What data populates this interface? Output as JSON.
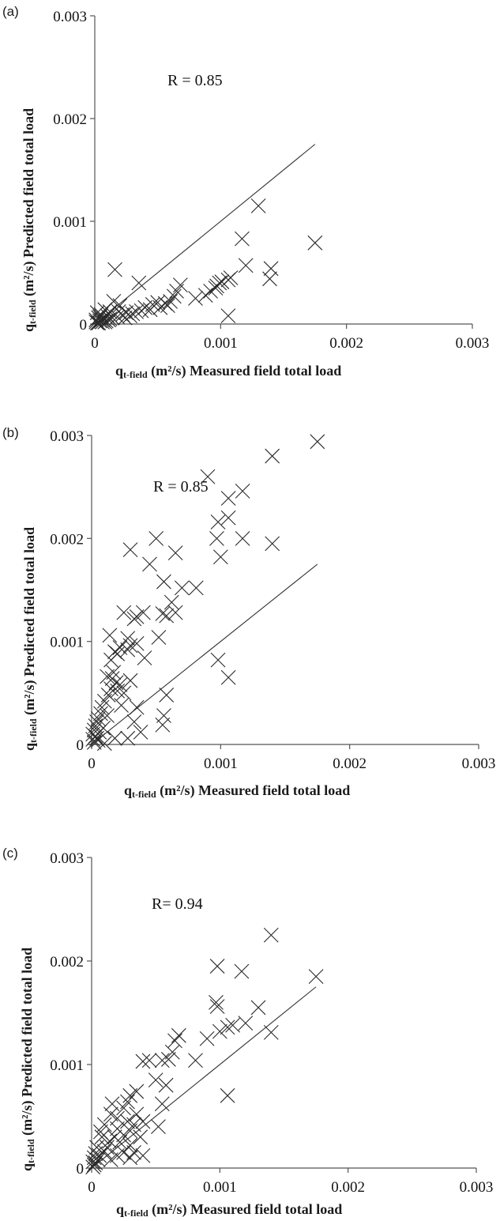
{
  "chart_data": [
    {
      "type": "scatter",
      "panel_label": "(a)",
      "annotation": "R = 0.85",
      "xlabel": {
        "prefix": "q",
        "sub": "t-field",
        "rest": " (m²/s) Measured field total load"
      },
      "ylabel": {
        "prefix": "q",
        "sub": "t-field",
        "rest": " (m²/s) Predicted field total load"
      },
      "xlim": [
        0,
        0.003
      ],
      "ylim": [
        0,
        0.003
      ],
      "x_ticks": [
        0,
        0.001,
        0.002,
        0.003
      ],
      "x_tick_labels": [
        "0",
        "0.001",
        "0.002",
        "0.003"
      ],
      "y_ticks": [
        0,
        0.001,
        0.002,
        0.003
      ],
      "y_tick_labels": [
        "0",
        "0.001",
        "0.002",
        "0.003"
      ],
      "reference_line": {
        "x": [
          0,
          0.00175
        ],
        "y": [
          0,
          0.00175
        ]
      },
      "points": [
        [
          0.0013,
          0.00115
        ],
        [
          0.00117,
          0.00083
        ],
        [
          0.00175,
          0.00079
        ],
        [
          0.0014,
          0.00054
        ],
        [
          0.00139,
          0.00044
        ],
        [
          0.0012,
          0.00057
        ],
        [
          0.00108,
          0.00045
        ],
        [
          0.00106,
          0.00043
        ],
        [
          0.00101,
          0.00041
        ],
        [
          0.00099,
          0.0004
        ],
        [
          0.00097,
          0.00037
        ],
        [
          0.00096,
          0.00035
        ],
        [
          0.00106,
          8e-05
        ],
        [
          0.00092,
          0.00032
        ],
        [
          0.00088,
          0.00028
        ],
        [
          0.0008,
          0.00025
        ],
        [
          0.00068,
          0.00038
        ],
        [
          0.00065,
          0.00032
        ],
        [
          0.00063,
          0.00027
        ],
        [
          0.0006,
          0.00022
        ],
        [
          0.00058,
          0.00018
        ],
        [
          0.00056,
          0.0002
        ],
        [
          0.00052,
          0.00016
        ],
        [
          0.0005,
          0.00021
        ],
        [
          0.00046,
          0.00019
        ],
        [
          0.00044,
          0.00014
        ],
        [
          0.0004,
          0.00016
        ],
        [
          0.00037,
          0.00013
        ],
        [
          0.00035,
          0.0004
        ],
        [
          0.00033,
          0.00012
        ],
        [
          0.0003,
          0.0001
        ],
        [
          0.00028,
          8e-05
        ],
        [
          0.00025,
          0.00011
        ],
        [
          0.00022,
          9e-05
        ],
        [
          0.0002,
          0.00018
        ],
        [
          0.00018,
          7e-05
        ],
        [
          0.00016,
          0.00053
        ],
        [
          0.00015,
          0.00022
        ],
        [
          0.00014,
          6e-05
        ],
        [
          0.00012,
          0.00012
        ],
        [
          0.00011,
          4e-05
        ],
        [
          0.0001,
          8e-05
        ],
        [
          9e-05,
          3e-05
        ],
        [
          8e-05,
          0.00014
        ],
        [
          7e-05,
          5e-05
        ],
        [
          6e-05,
          2e-05
        ],
        [
          5e-05,
          9e-05
        ],
        [
          4e-05,
          3e-05
        ],
        [
          3e-05,
          6e-05
        ],
        [
          2e-05,
          1e-05
        ],
        [
          2e-05,
          0.00011
        ],
        [
          1e-05,
          2e-05
        ],
        [
          1e-05,
          4e-05
        ],
        [
          3e-05,
          1e-05
        ],
        [
          4e-05,
          7e-05
        ],
        [
          6e-05,
          4e-05
        ],
        [
          8e-05,
          2e-05
        ],
        [
          0.00012,
          5e-05
        ],
        [
          0.00019,
          0.00012
        ],
        [
          0.00024,
          6e-05
        ]
      ]
    },
    {
      "type": "scatter",
      "panel_label": "(b)",
      "annotation": "R = 0.85",
      "xlabel": {
        "prefix": "q",
        "sub": "t-field",
        "rest": " (m²/s) Measured field total load"
      },
      "ylabel": {
        "prefix": "q",
        "sub": "t-field",
        "rest": " (m²/s) Predicted field total load"
      },
      "xlim": [
        0,
        0.003
      ],
      "ylim": [
        0,
        0.003
      ],
      "x_ticks": [
        0,
        0.001,
        0.002,
        0.003
      ],
      "x_tick_labels": [
        "0",
        "0.001",
        "0.002",
        "0.003"
      ],
      "y_ticks": [
        0,
        0.001,
        0.002,
        0.003
      ],
      "y_tick_labels": [
        "0",
        "0.001",
        "0.002",
        "0.003"
      ],
      "reference_line": {
        "x": [
          0,
          0.00175
        ],
        "y": [
          0,
          0.00175
        ]
      },
      "points": [
        [
          0.00175,
          0.00294
        ],
        [
          0.0014,
          0.0028
        ],
        [
          0.0009,
          0.0026
        ],
        [
          0.00117,
          0.00246
        ],
        [
          0.00106,
          0.00239
        ],
        [
          0.00098,
          0.00216
        ],
        [
          0.00106,
          0.0022
        ],
        [
          0.00117,
          0.002
        ],
        [
          0.00097,
          0.002
        ],
        [
          0.0014,
          0.00195
        ],
        [
          0.001,
          0.00182
        ],
        [
          0.0003,
          0.00189
        ],
        [
          0.0005,
          0.002
        ],
        [
          0.00045,
          0.00175
        ],
        [
          0.00065,
          0.00186
        ],
        [
          0.00056,
          0.00158
        ],
        [
          0.0007,
          0.00152
        ],
        [
          0.00081,
          0.00152
        ],
        [
          0.00062,
          0.00138
        ],
        [
          0.00055,
          0.00127
        ],
        [
          0.00058,
          0.00125
        ],
        [
          0.00065,
          0.00128
        ],
        [
          0.0004,
          0.00128
        ],
        [
          0.00035,
          0.00124
        ],
        [
          0.00033,
          0.00122
        ],
        [
          0.00025,
          0.00128
        ],
        [
          0.00052,
          0.00104
        ],
        [
          0.00041,
          0.00084
        ],
        [
          0.00035,
          0.00098
        ],
        [
          0.00028,
          0.00103
        ],
        [
          0.0003,
          0.00096
        ],
        [
          0.00028,
          0.00092
        ],
        [
          0.00022,
          0.00094
        ],
        [
          0.00018,
          0.0009
        ],
        [
          0.0002,
          0.00088
        ],
        [
          0.00015,
          0.00082
        ],
        [
          0.00014,
          0.00106
        ],
        [
          0.00017,
          0.0007
        ],
        [
          0.00012,
          0.00066
        ],
        [
          0.00016,
          0.00064
        ],
        [
          0.00019,
          0.0006
        ],
        [
          0.00022,
          0.00058
        ],
        [
          0.00015,
          0.00054
        ],
        [
          0.00013,
          0.00048
        ],
        [
          0.00025,
          0.0005
        ],
        [
          0.0003,
          0.00062
        ],
        [
          0.0002,
          0.00052
        ],
        [
          0.0001,
          0.00042
        ],
        [
          8e-05,
          0.00036
        ],
        [
          7e-05,
          0.0003
        ],
        [
          5e-05,
          0.00025
        ],
        [
          4e-05,
          0.00022
        ],
        [
          3e-05,
          0.00018
        ],
        [
          2e-05,
          0.00014
        ],
        [
          1e-05,
          0.0001
        ],
        [
          1e-05,
          5e-05
        ],
        [
          2e-05,
          2e-05
        ],
        [
          3e-05,
          8e-05
        ],
        [
          5e-05,
          4e-05
        ],
        [
          6e-05,
          0.00012
        ],
        [
          0.00035,
          0.00036
        ],
        [
          0.00033,
          0.00022
        ],
        [
          0.00038,
          0.00012
        ],
        [
          0.00028,
          6e-05
        ],
        [
          0.00058,
          0.00048
        ],
        [
          0.00056,
          0.00028
        ],
        [
          0.00055,
          0.00019
        ],
        [
          0.00098,
          0.00082
        ],
        [
          0.00106,
          0.00065
        ],
        [
          0.00023,
          0.00038
        ],
        [
          0.00012,
          0.00028
        ],
        [
          9e-05,
          0.00016
        ],
        [
          0.00018,
          6e-05
        ],
        [
          4e-05,
          6e-05
        ],
        [
          0.0001,
          1e-05
        ]
      ]
    },
    {
      "type": "scatter",
      "panel_label": "(c)",
      "annotation": "R= 0.94",
      "xlabel": {
        "prefix": "q",
        "sub": "t-field",
        "rest": " (m²/s) Measured field total load"
      },
      "ylabel": {
        "prefix": "q",
        "sub": "t-field",
        "rest": " (m²/s) Predicted field total load"
      },
      "xlim": [
        0,
        0.003
      ],
      "ylim": [
        0,
        0.003
      ],
      "x_ticks": [
        0,
        0.001,
        0.002,
        0.003
      ],
      "x_tick_labels": [
        "0",
        "0.001",
        "0.002",
        "0.003"
      ],
      "y_ticks": [
        0,
        0.001,
        0.002,
        0.003
      ],
      "y_tick_labels": [
        "0",
        "0.001",
        "0.002",
        "0.003"
      ],
      "reference_line": {
        "x": [
          0,
          0.00175
        ],
        "y": [
          0,
          0.00175
        ]
      },
      "points": [
        [
          0.0014,
          0.00225
        ],
        [
          0.00098,
          0.00195
        ],
        [
          0.00117,
          0.0019
        ],
        [
          0.00175,
          0.00185
        ],
        [
          0.00097,
          0.0016
        ],
        [
          0.00098,
          0.00156
        ],
        [
          0.0013,
          0.00155
        ],
        [
          0.0012,
          0.0014
        ],
        [
          0.0011,
          0.00138
        ],
        [
          0.00106,
          0.00136
        ],
        [
          0.001,
          0.00132
        ],
        [
          0.0014,
          0.00131
        ],
        [
          0.00106,
          0.0007
        ],
        [
          0.0009,
          0.00125
        ],
        [
          0.00081,
          0.00104
        ],
        [
          0.00068,
          0.00128
        ],
        [
          0.00065,
          0.00123
        ],
        [
          0.00063,
          0.00112
        ],
        [
          0.0006,
          0.00105
        ],
        [
          0.00055,
          0.00104
        ],
        [
          0.0005,
          0.00085
        ],
        [
          0.00045,
          0.00104
        ],
        [
          0.0004,
          0.00103
        ],
        [
          0.00058,
          0.0008
        ],
        [
          0.00055,
          0.00062
        ],
        [
          0.00052,
          0.0004
        ],
        [
          0.00035,
          0.00074
        ],
        [
          0.0003,
          0.0007
        ],
        [
          0.00028,
          0.00064
        ],
        [
          0.00025,
          0.00058
        ],
        [
          0.0002,
          0.00048
        ],
        [
          0.00016,
          0.00062
        ],
        [
          0.00015,
          0.00052
        ],
        [
          0.00035,
          0.00052
        ],
        [
          0.00033,
          0.00042
        ],
        [
          0.0003,
          0.00036
        ],
        [
          0.00025,
          0.00032
        ],
        [
          0.0004,
          0.00045
        ],
        [
          0.00038,
          0.0003
        ],
        [
          0.0003,
          0.00022
        ],
        [
          0.00022,
          0.00025
        ],
        [
          0.0002,
          0.00038
        ],
        [
          0.00018,
          0.0003
        ],
        [
          0.00014,
          0.00026
        ],
        [
          0.00012,
          0.0002
        ],
        [
          0.0001,
          0.00016
        ],
        [
          8e-05,
          0.0003
        ],
        [
          6e-05,
          0.00012
        ],
        [
          5e-05,
          8e-05
        ],
        [
          4e-05,
          0.0002
        ],
        [
          3e-05,
          5e-05
        ],
        [
          2e-05,
          3e-05
        ],
        [
          1e-05,
          1e-05
        ],
        [
          1e-05,
          6e-05
        ],
        [
          3e-05,
          0.00014
        ],
        [
          2e-05,
          0.0001
        ],
        [
          0.0003,
          0.0001
        ],
        [
          0.00033,
          0.00015
        ],
        [
          0.0001,
          0.00042
        ],
        [
          7e-05,
          0.00035
        ],
        [
          0.00025,
          0.00015
        ],
        [
          0.00015,
          8e-05
        ],
        [
          0.0004,
          0.00012
        ],
        [
          0.00028,
          0.00045
        ],
        [
          0.0002,
          0.00012
        ]
      ]
    }
  ]
}
